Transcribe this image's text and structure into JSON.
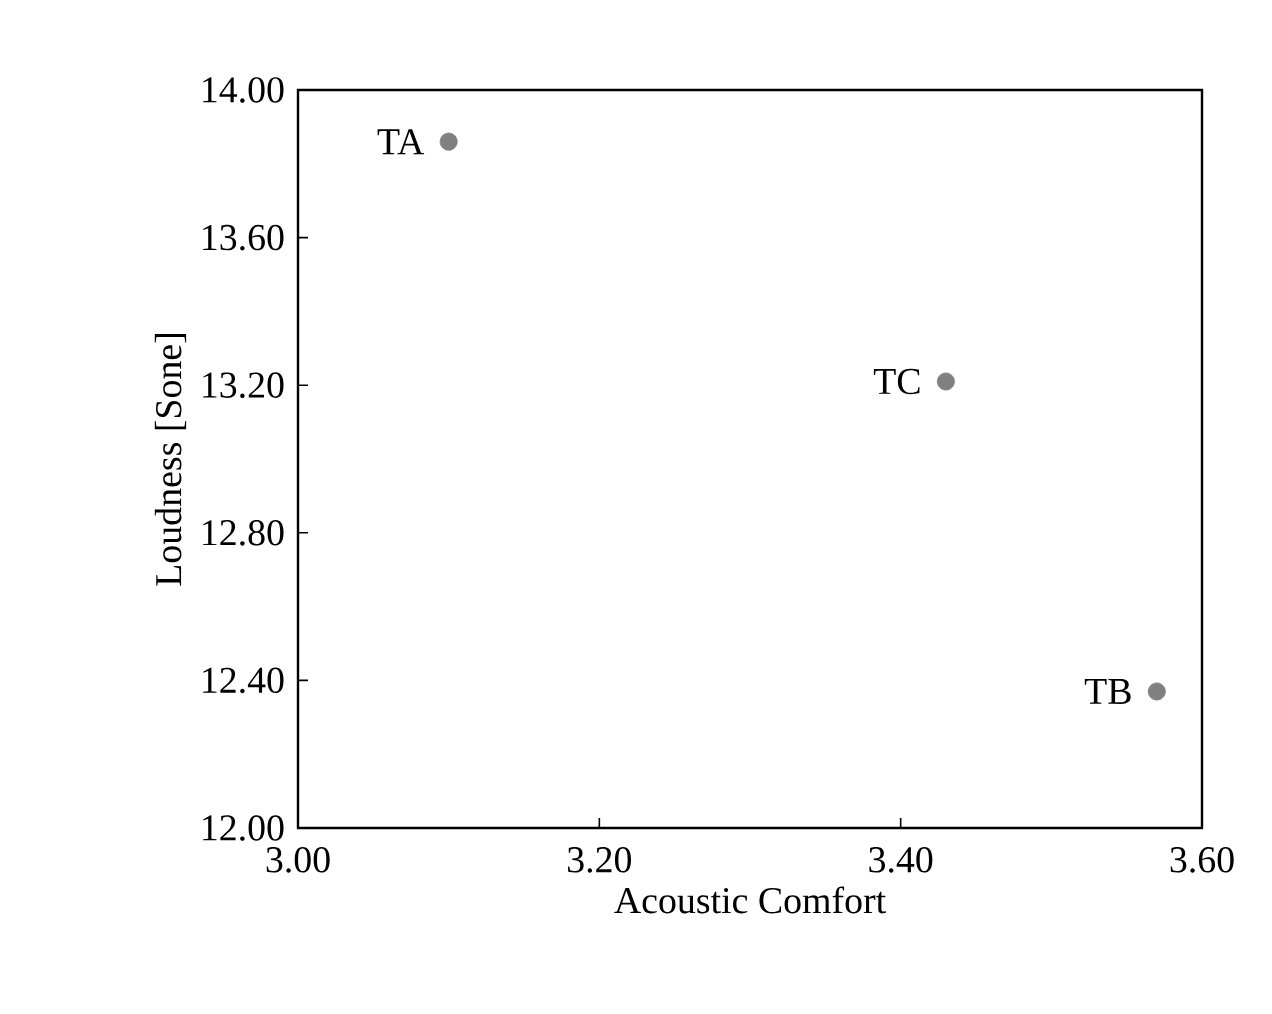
{
  "chart_data": {
    "type": "scatter",
    "xlabel": "Acoustic Comfort",
    "ylabel": "Loudness [Sone]",
    "x": [
      3.1,
      3.57,
      3.43
    ],
    "series": [
      {
        "color": "#808080",
        "values": [
          13.86,
          12.37,
          13.21
        ]
      }
    ],
    "marker": "circle",
    "grid": false,
    "xlim": [
      3.0,
      3.6
    ],
    "ylim": [
      12.0,
      14.0
    ],
    "xticks": [
      {
        "value": 3.0,
        "label": "3.00"
      },
      {
        "value": 3.2,
        "label": "3.20"
      },
      {
        "value": 3.4,
        "label": "3.40"
      },
      {
        "value": 3.6,
        "label": "3.60"
      }
    ],
    "yticks": [
      {
        "value": 12.0,
        "label": "12.00"
      },
      {
        "value": 12.4,
        "label": "12.40"
      },
      {
        "value": 12.8,
        "label": "12.80"
      },
      {
        "value": 13.2,
        "label": "13.20"
      },
      {
        "value": 13.6,
        "label": "13.60"
      },
      {
        "value": 14.0,
        "label": "14.00"
      }
    ],
    "annotations": [
      {
        "text": "TA",
        "x": 3.1,
        "y": 13.86
      },
      {
        "text": "TB",
        "x": 3.57,
        "y": 12.37
      },
      {
        "text": "TC",
        "x": 3.43,
        "y": 13.21
      }
    ]
  }
}
